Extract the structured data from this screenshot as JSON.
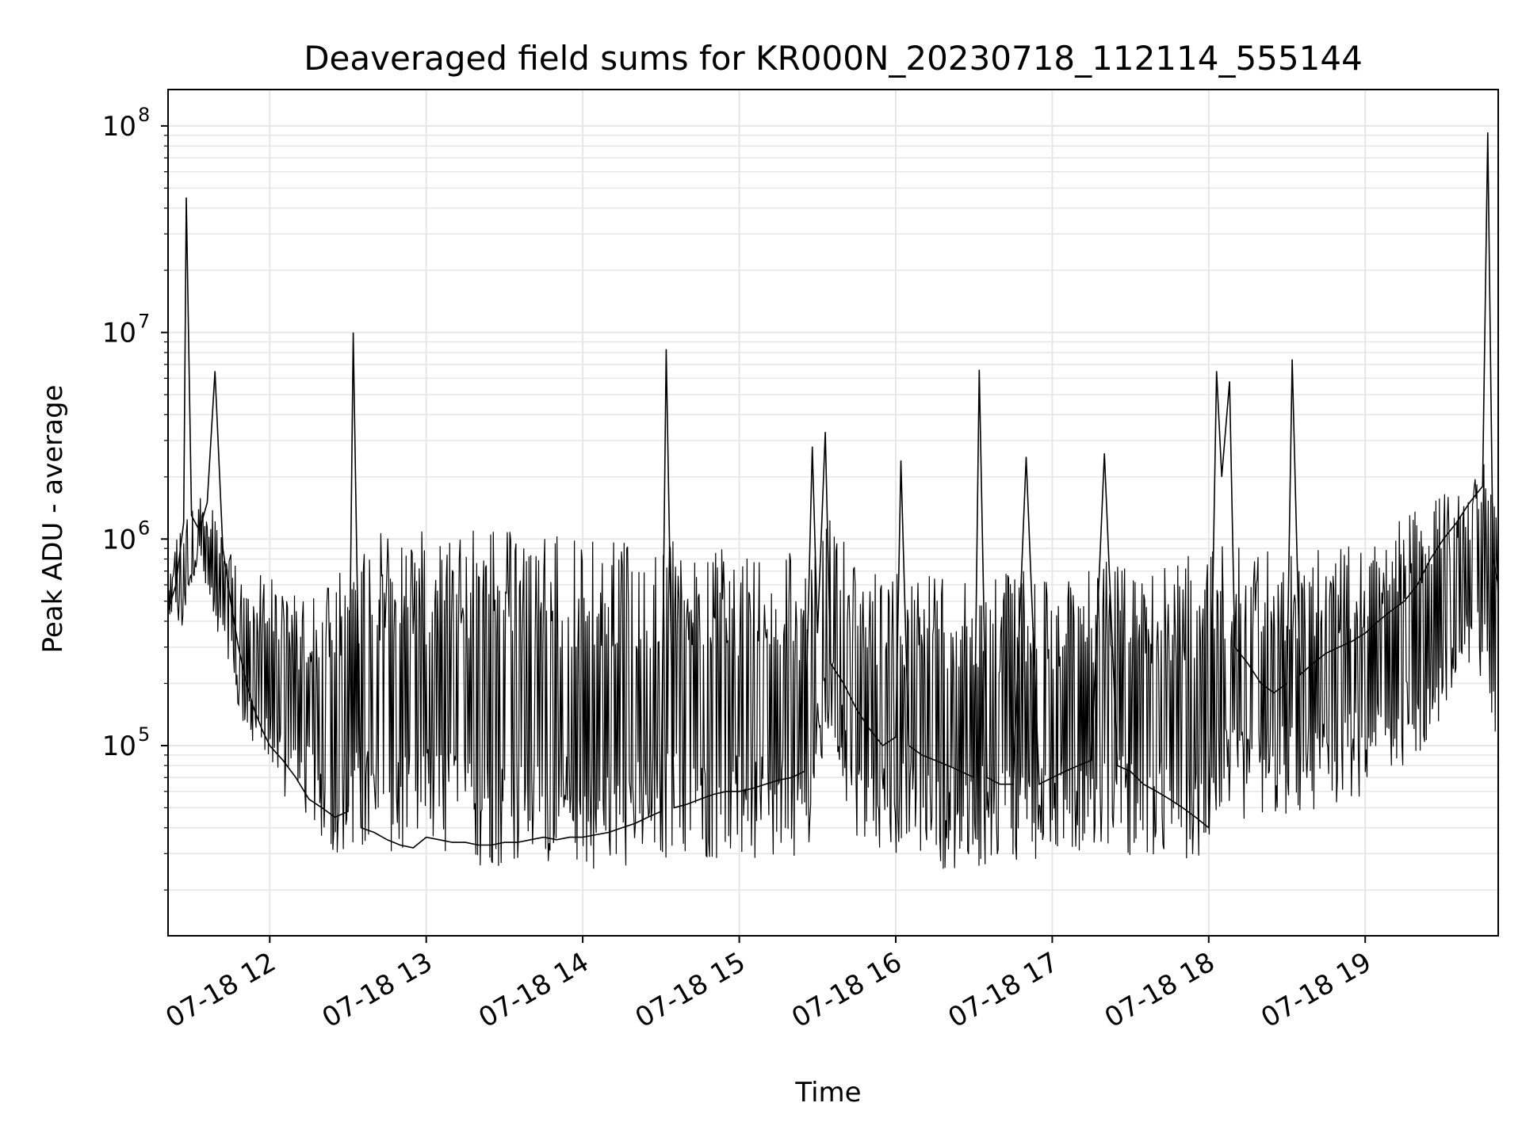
{
  "chart_data": {
    "type": "line",
    "title": "Deaveraged field sums for KR000N_20230718_112114_555144",
    "xlabel": "Time",
    "ylabel": "Peak ADU - average",
    "yscale": "log",
    "ylim": [
      12000,
      150000000
    ],
    "xlim": [
      "2023-07-18 11:21",
      "2023-07-18 19:51"
    ],
    "grid": true,
    "legend": "none",
    "line_color": "#000000",
    "grid_color": "#e6e6e6",
    "x_ticks": [
      {
        "value": "2023-07-18 12:00",
        "label": "07-18 12"
      },
      {
        "value": "2023-07-18 13:00",
        "label": "07-18 13"
      },
      {
        "value": "2023-07-18 14:00",
        "label": "07-18 14"
      },
      {
        "value": "2023-07-18 15:00",
        "label": "07-18 15"
      },
      {
        "value": "2023-07-18 16:00",
        "label": "07-18 16"
      },
      {
        "value": "2023-07-18 17:00",
        "label": "07-18 17"
      },
      {
        "value": "2023-07-18 18:00",
        "label": "07-18 18"
      },
      {
        "value": "2023-07-18 19:00",
        "label": "07-18 19"
      }
    ],
    "y_ticks": [
      {
        "value": 100000,
        "base": "10",
        "exp": "5"
      },
      {
        "value": 1000000,
        "base": "10",
        "exp": "6"
      },
      {
        "value": 10000000,
        "base": "10",
        "exp": "7"
      },
      {
        "value": 100000000,
        "base": "10",
        "exp": "8"
      }
    ],
    "series": [
      {
        "x": [
          "2023-07-18 11:21",
          "2023-07-18 11:24",
          "2023-07-18 11:27",
          "2023-07-18 11:28",
          "2023-07-18 11:30",
          "2023-07-18 11:33",
          "2023-07-18 11:36",
          "2023-07-18 11:39",
          "2023-07-18 11:42",
          "2023-07-18 11:45",
          "2023-07-18 11:48",
          "2023-07-18 11:51",
          "2023-07-18 11:54",
          "2023-07-18 11:57",
          "2023-07-18 12:00",
          "2023-07-18 12:05",
          "2023-07-18 12:10",
          "2023-07-18 12:15",
          "2023-07-18 12:20",
          "2023-07-18 12:25",
          "2023-07-18 12:30",
          "2023-07-18 12:32",
          "2023-07-18 12:35",
          "2023-07-18 12:40",
          "2023-07-18 12:45",
          "2023-07-18 12:50",
          "2023-07-18 12:55",
          "2023-07-18 13:00",
          "2023-07-18 13:05",
          "2023-07-18 13:10",
          "2023-07-18 13:15",
          "2023-07-18 13:20",
          "2023-07-18 13:25",
          "2023-07-18 13:30",
          "2023-07-18 13:35",
          "2023-07-18 13:40",
          "2023-07-18 13:45",
          "2023-07-18 13:50",
          "2023-07-18 13:55",
          "2023-07-18 14:00",
          "2023-07-18 14:05",
          "2023-07-18 14:10",
          "2023-07-18 14:15",
          "2023-07-18 14:20",
          "2023-07-18 14:25",
          "2023-07-18 14:30",
          "2023-07-18 14:32",
          "2023-07-18 14:35",
          "2023-07-18 14:40",
          "2023-07-18 14:45",
          "2023-07-18 14:50",
          "2023-07-18 14:55",
          "2023-07-18 15:00",
          "2023-07-18 15:05",
          "2023-07-18 15:10",
          "2023-07-18 15:15",
          "2023-07-18 15:20",
          "2023-07-18 15:25",
          "2023-07-18 15:28",
          "2023-07-18 15:30",
          "2023-07-18 15:33",
          "2023-07-18 15:35",
          "2023-07-18 15:40",
          "2023-07-18 15:45",
          "2023-07-18 15:50",
          "2023-07-18 15:55",
          "2023-07-18 16:00",
          "2023-07-18 16:02",
          "2023-07-18 16:05",
          "2023-07-18 16:10",
          "2023-07-18 16:15",
          "2023-07-18 16:20",
          "2023-07-18 16:25",
          "2023-07-18 16:30",
          "2023-07-18 16:32",
          "2023-07-18 16:35",
          "2023-07-18 16:40",
          "2023-07-18 16:45",
          "2023-07-18 16:50",
          "2023-07-18 16:55",
          "2023-07-18 17:00",
          "2023-07-18 17:05",
          "2023-07-18 17:10",
          "2023-07-18 17:15",
          "2023-07-18 17:20",
          "2023-07-18 17:25",
          "2023-07-18 17:30",
          "2023-07-18 17:35",
          "2023-07-18 17:40",
          "2023-07-18 17:45",
          "2023-07-18 17:50",
          "2023-07-18 17:55",
          "2023-07-18 18:00",
          "2023-07-18 18:03",
          "2023-07-18 18:05",
          "2023-07-18 18:08",
          "2023-07-18 18:10",
          "2023-07-18 18:15",
          "2023-07-18 18:20",
          "2023-07-18 18:25",
          "2023-07-18 18:30",
          "2023-07-18 18:32",
          "2023-07-18 18:35",
          "2023-07-18 18:40",
          "2023-07-18 18:45",
          "2023-07-18 18:50",
          "2023-07-18 18:55",
          "2023-07-18 19:00",
          "2023-07-18 19:05",
          "2023-07-18 19:10",
          "2023-07-18 19:15",
          "2023-07-18 19:20",
          "2023-07-18 19:25",
          "2023-07-18 19:30",
          "2023-07-18 19:35",
          "2023-07-18 19:40",
          "2023-07-18 19:45",
          "2023-07-18 19:47",
          "2023-07-18 19:49",
          "2023-07-18 19:51"
        ],
        "y": [
          450000,
          600000,
          1200000,
          45000000,
          1300000,
          1100000,
          1500000,
          6500000,
          900000,
          500000,
          300000,
          200000,
          150000,
          120000,
          100000,
          85000,
          70000,
          55000,
          50000,
          45000,
          48000,
          10000000,
          40000,
          38000,
          35000,
          33000,
          32000,
          36000,
          35000,
          34000,
          34000,
          33000,
          33000,
          34000,
          34000,
          35000,
          36000,
          35000,
          36000,
          36000,
          37000,
          38000,
          40000,
          42000,
          45000,
          48000,
          8300000,
          50000,
          52000,
          55000,
          58000,
          60000,
          60000,
          62000,
          65000,
          68000,
          70000,
          75000,
          2800000,
          350000,
          3300000,
          250000,
          200000,
          150000,
          120000,
          100000,
          110000,
          2400000,
          100000,
          90000,
          85000,
          80000,
          75000,
          70000,
          6600000,
          70000,
          65000,
          65000,
          2500000,
          65000,
          70000,
          75000,
          80000,
          85000,
          2600000,
          80000,
          75000,
          65000,
          60000,
          55000,
          50000,
          45000,
          40000,
          6500000,
          2000000,
          5800000,
          300000,
          250000,
          200000,
          180000,
          200000,
          7400000,
          220000,
          250000,
          280000,
          300000,
          320000,
          350000,
          400000,
          450000,
          500000,
          600000,
          800000,
          1000000,
          1200000,
          1500000,
          1800000,
          93000000,
          800000,
          600000
        ]
      }
    ],
    "envelope": {
      "x": [
        "2023-07-18 11:21",
        "2023-07-18 11:27",
        "2023-07-18 11:33",
        "2023-07-18 11:39",
        "2023-07-18 11:45",
        "2023-07-18 11:51",
        "2023-07-18 11:57",
        "2023-07-18 12:05",
        "2023-07-18 12:15",
        "2023-07-18 12:25",
        "2023-07-18 12:35",
        "2023-07-18 12:45",
        "2023-07-18 12:55",
        "2023-07-18 13:05",
        "2023-07-18 13:15",
        "2023-07-18 13:25",
        "2023-07-18 13:35",
        "2023-07-18 13:45",
        "2023-07-18 13:55",
        "2023-07-18 14:05",
        "2023-07-18 14:15",
        "2023-07-18 14:25",
        "2023-07-18 14:35",
        "2023-07-18 14:45",
        "2023-07-18 14:55",
        "2023-07-18 15:05",
        "2023-07-18 15:15",
        "2023-07-18 15:25",
        "2023-07-18 15:35",
        "2023-07-18 15:45",
        "2023-07-18 15:55",
        "2023-07-18 16:05",
        "2023-07-18 16:15",
        "2023-07-18 16:25",
        "2023-07-18 16:35",
        "2023-07-18 16:45",
        "2023-07-18 16:55",
        "2023-07-18 17:05",
        "2023-07-18 17:15",
        "2023-07-18 17:25",
        "2023-07-18 17:35",
        "2023-07-18 17:45",
        "2023-07-18 17:55",
        "2023-07-18 18:05",
        "2023-07-18 18:15",
        "2023-07-18 18:25",
        "2023-07-18 18:35",
        "2023-07-18 18:45",
        "2023-07-18 18:55",
        "2023-07-18 19:05",
        "2023-07-18 19:15",
        "2023-07-18 19:25",
        "2023-07-18 19:35",
        "2023-07-18 19:45",
        "2023-07-18 19:51"
      ],
      "upper": [
        600000,
        1600000,
        1600000,
        1400000,
        900000,
        600000,
        700000,
        600000,
        500000,
        700000,
        1000000,
        1100000,
        1100000,
        1100000,
        1100000,
        1100000,
        1100000,
        1050000,
        1050000,
        1000000,
        1000000,
        1000000,
        1000000,
        950000,
        900000,
        900000,
        850000,
        900000,
        1500000,
        800000,
        700000,
        700000,
        700000,
        700000,
        700000,
        700000,
        700000,
        700000,
        750000,
        800000,
        800000,
        800000,
        850000,
        1000000,
        900000,
        900000,
        900000,
        900000,
        950000,
        1000000,
        1300000,
        1800000,
        2000000,
        2500000,
        1200000
      ],
      "lower": [
        380000,
        350000,
        800000,
        400000,
        200000,
        110000,
        80000,
        55000,
        42000,
        30000,
        28000,
        28000,
        28000,
        28000,
        26000,
        25000,
        26000,
        27000,
        26000,
        25000,
        26000,
        27000,
        28000,
        28000,
        27000,
        26000,
        25000,
        26000,
        120000,
        30000,
        30000,
        28000,
        25000,
        25000,
        26000,
        27000,
        28000,
        30000,
        32000,
        30000,
        28000,
        27000,
        25000,
        40000,
        40000,
        45000,
        45000,
        50000,
        55000,
        60000,
        80000,
        100000,
        180000,
        200000,
        100000
      ]
    }
  }
}
